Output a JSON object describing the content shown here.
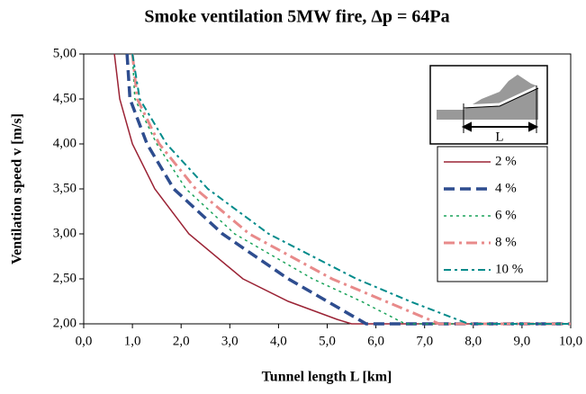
{
  "chart_data": {
    "type": "line",
    "title": "Smoke ventilation 5MW fire, Δp = 64Pa",
    "x_label": "Tunnel length L [km]",
    "y_label": "Ventilation speed v [m/s]",
    "xlim": [
      0,
      10
    ],
    "ylim": [
      2,
      5
    ],
    "xticks": [
      {
        "value": 0,
        "label": "0,0"
      },
      {
        "value": 1,
        "label": "1,0"
      },
      {
        "value": 2,
        "label": "2,0"
      },
      {
        "value": 3,
        "label": "3,0"
      },
      {
        "value": 4,
        "label": "4,0"
      },
      {
        "value": 5,
        "label": "5,0"
      },
      {
        "value": 6,
        "label": "6,0"
      },
      {
        "value": 7,
        "label": "7,0"
      },
      {
        "value": 8,
        "label": "8,0"
      },
      {
        "value": 9,
        "label": "9,0"
      },
      {
        "value": 10,
        "label": "10,0"
      }
    ],
    "yticks": [
      {
        "value": 2,
        "label": "2,00"
      },
      {
        "value": 2.5,
        "label": "2,50"
      },
      {
        "value": 3,
        "label": "3,00"
      },
      {
        "value": 3.5,
        "label": "3,50"
      },
      {
        "value": 4,
        "label": "4,00"
      },
      {
        "value": 4.5,
        "label": "4,50"
      },
      {
        "value": 5,
        "label": "5,00"
      }
    ],
    "legend_position": "upper right",
    "inset_label": "L",
    "series": [
      {
        "name": "2 %",
        "color": "#9b2335",
        "dash": "none",
        "width": 1.5,
        "x": [
          0.63,
          0.74,
          1.0,
          1.46,
          2.16,
          3.27,
          4.2,
          5.2,
          5.5,
          10
        ],
        "values": [
          5,
          4.5,
          4,
          3.5,
          3,
          2.5,
          2.25,
          2.05,
          2,
          2
        ]
      },
      {
        "name": "4 %",
        "color": "#2e4d8f",
        "dash": "12,6",
        "width": 3.5,
        "x": [
          0.89,
          0.95,
          1.3,
          1.85,
          2.85,
          4.2,
          5.0,
          5.8,
          10
        ],
        "values": [
          5,
          4.5,
          4,
          3.5,
          3,
          2.5,
          2.25,
          2,
          2
        ]
      },
      {
        "name": "6 %",
        "color": "#1aa35a",
        "dash": "3,4",
        "width": 1.5,
        "x": [
          1.0,
          1.05,
          1.5,
          2.1,
          3.1,
          4.7,
          5.7,
          6.6,
          10
        ],
        "values": [
          5,
          4.5,
          4,
          3.5,
          3,
          2.5,
          2.25,
          2,
          2
        ]
      },
      {
        "name": "8 %",
        "color": "#e88a8a",
        "dash": "12,5,3,5",
        "width": 3,
        "x": [
          1.0,
          1.1,
          1.55,
          2.3,
          3.4,
          5.1,
          6.2,
          7.3,
          10
        ],
        "values": [
          5,
          4.5,
          4,
          3.5,
          3,
          2.5,
          2.25,
          2,
          2
        ]
      },
      {
        "name": "10 %",
        "color": "#008b8b",
        "dash": "8,4,3,4",
        "width": 2,
        "x": [
          1.0,
          1.15,
          1.7,
          2.55,
          3.8,
          5.6,
          6.7,
          7.9,
          10
        ],
        "values": [
          5,
          4.5,
          4,
          3.5,
          3,
          2.5,
          2.25,
          2,
          2
        ]
      }
    ]
  }
}
